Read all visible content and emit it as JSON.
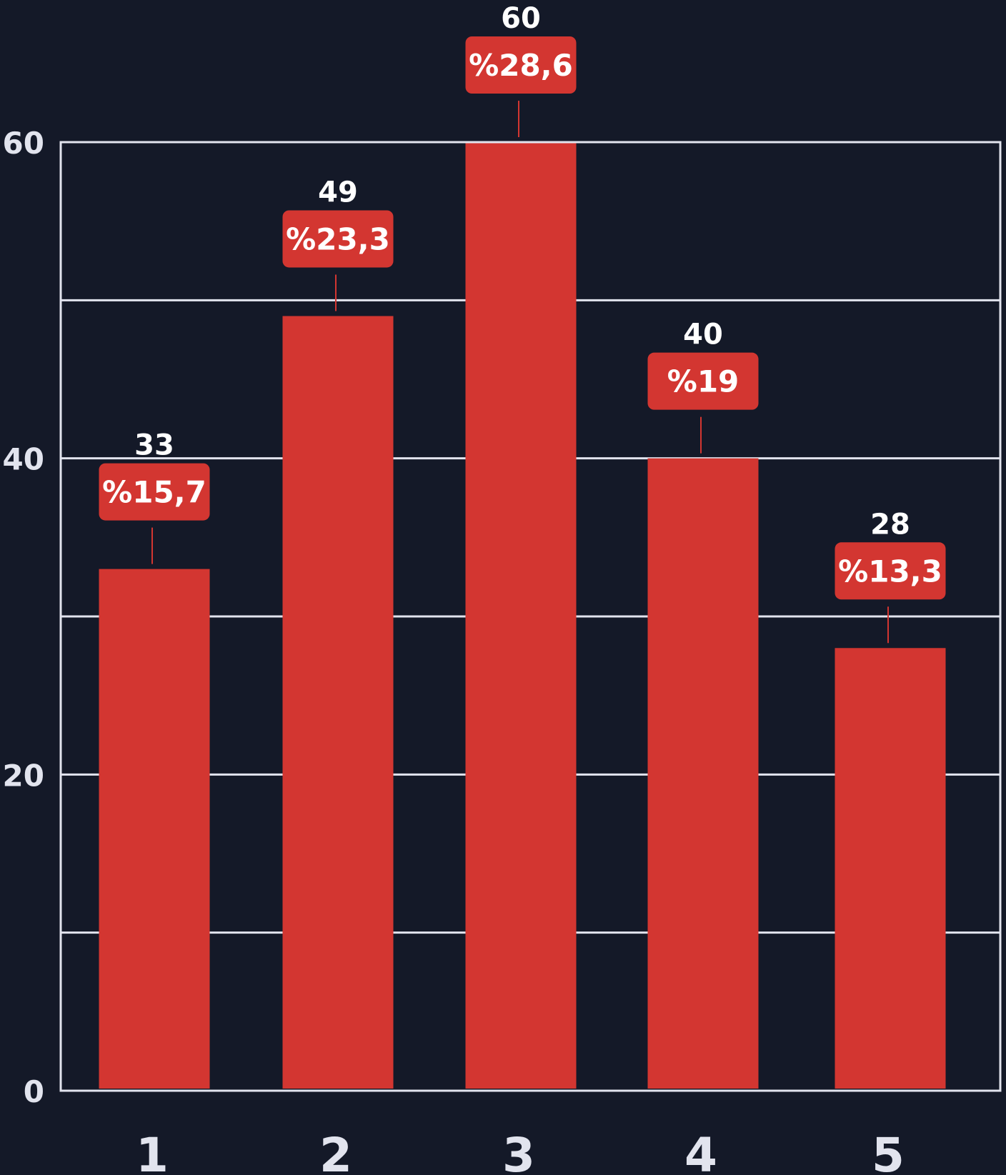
{
  "chart_data": {
    "type": "bar",
    "categories": [
      "1",
      "2",
      "3",
      "4",
      "5"
    ],
    "values": [
      33,
      49,
      60,
      40,
      28
    ],
    "percent_labels": [
      "%15,7",
      "%23,3",
      "%28,6",
      "%19",
      "%13,3"
    ],
    "ylim": [
      0,
      60
    ],
    "y_ticks": [
      0,
      20,
      40,
      60
    ],
    "y_tick_labels": [
      "0",
      "20",
      "40",
      "60"
    ],
    "gridlines": [
      10,
      20,
      30,
      40,
      50,
      60
    ],
    "grid": true,
    "title": "",
    "xlabel": "",
    "ylabel": "",
    "colors": {
      "background": "#141928",
      "bar": "#d33631",
      "grid": "#e2e4ee",
      "axis_text": "#e2e4ee",
      "value_text": "#ffffff",
      "badge_text": "#ffffff"
    }
  }
}
